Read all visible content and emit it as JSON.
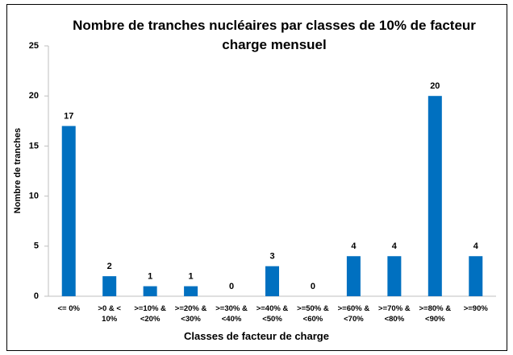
{
  "chart_data": {
    "type": "bar",
    "title": "Nombre de tranches nucléaires par classes de 10% de facteur charge mensuel",
    "x_label": "Classes de facteur de charge",
    "y_label": "Nombre de tranches",
    "categories": [
      "<= 0%",
      ">0 & < 10%",
      ">=10% & <20%",
      ">=20% & <30%",
      ">=30% & <40%",
      ">=40% & <50%",
      ">=50% & <60%",
      ">=60% & <70%",
      ">=70% & <80%",
      ">=80% & <90%",
      ">=90%"
    ],
    "values": [
      17,
      2,
      1,
      1,
      0,
      3,
      0,
      4,
      4,
      20,
      4
    ],
    "color": "#0070c0",
    "ylim": [
      0,
      25
    ],
    "yticks": [
      0,
      5,
      10,
      15,
      20,
      25
    ],
    "grid": false
  }
}
